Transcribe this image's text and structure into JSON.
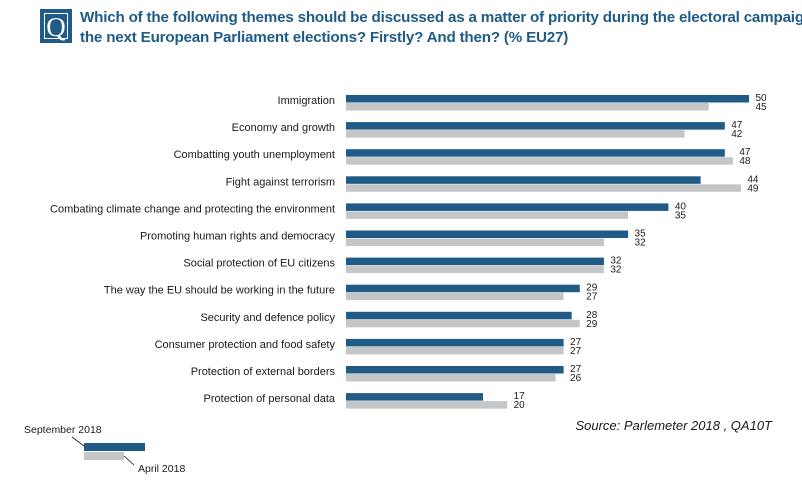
{
  "header": {
    "q_letter": "Q",
    "title_line1": "Which of the following themes should be discussed as a matter of priority during the electoral campaign for",
    "title_line2": "the next European Parliament elections? Firstly? And then? (% EU27)"
  },
  "source": "Source: Parlemeter 2018 , QA10T",
  "colors": {
    "september": "#1f5b86",
    "april": "#c4c6c8",
    "title": "#1f5b86"
  },
  "chart_data": {
    "type": "bar",
    "orientation": "horizontal",
    "title": "Which of the following themes should be discussed as a matter of priority during the electoral campaign for the next European Parliament elections? Firstly? And then? (% EU27)",
    "categories": [
      "Immigration",
      "Economy and growth",
      "Combatting youth unemployment",
      "Fight against terrorism",
      "Combating climate change and protecting the environment",
      "Promoting human rights and democracy",
      "Social protection of EU citizens",
      "The way the EU should be working in the future",
      "Security and defence policy",
      "Consumer protection and food safety",
      "Protection of external borders",
      "Protection of personal data"
    ],
    "series": [
      {
        "name": "September 2018",
        "color": "#1f5b86",
        "values": [
          50,
          47,
          47,
          44,
          40,
          35,
          32,
          29,
          28,
          27,
          27,
          17
        ]
      },
      {
        "name": "April 2018",
        "color": "#c4c6c8",
        "values": [
          45,
          42,
          48,
          49,
          35,
          32,
          32,
          27,
          29,
          27,
          26,
          20
        ]
      }
    ],
    "xlim": [
      0,
      50
    ],
    "grid": false,
    "legend_position": "bottom-left"
  }
}
